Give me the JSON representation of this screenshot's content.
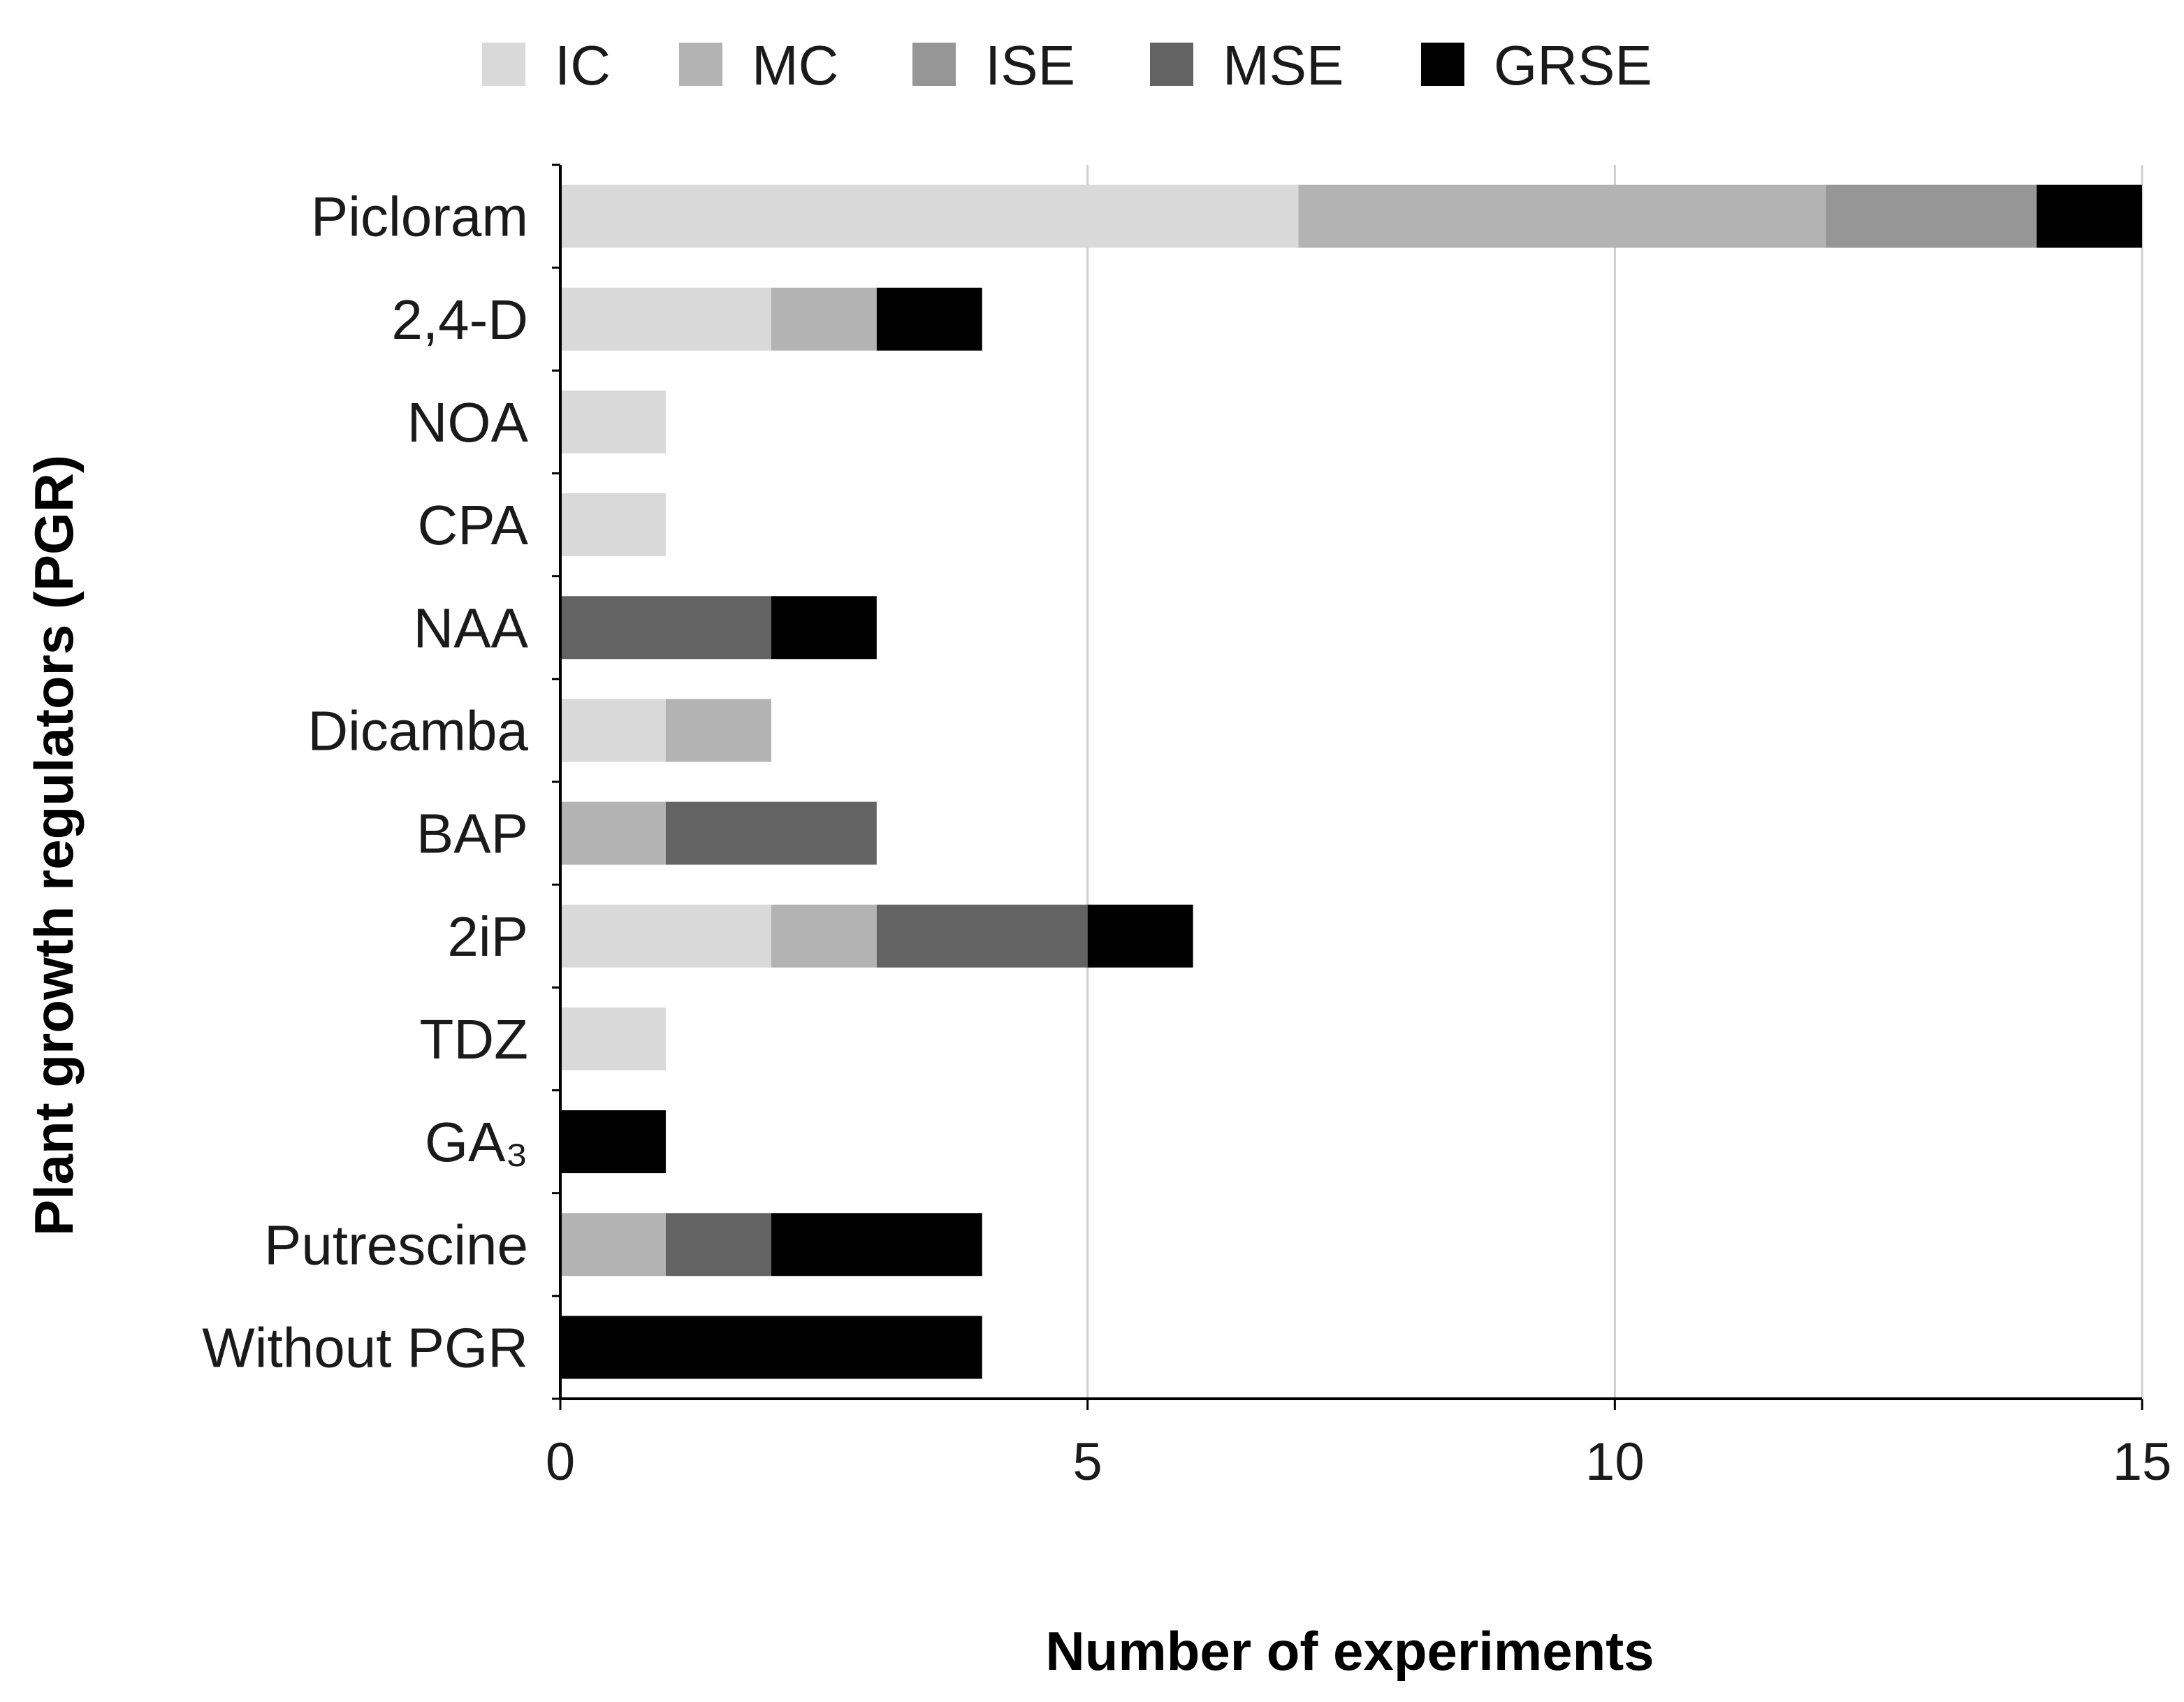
{
  "chart_data": {
    "type": "bar",
    "orientation": "horizontal",
    "stacked": true,
    "title": "",
    "xlabel": "Number of experiments",
    "ylabel": "Plant growth regulators (PGR)",
    "xlim": [
      0,
      15
    ],
    "xticks": [
      0,
      5,
      10,
      15
    ],
    "grid": "vertical",
    "legend_position": "top",
    "categories": [
      "Picloram",
      "2,4-D",
      "NOA",
      "CPA",
      "NAA",
      "Dicamba",
      "BAP",
      "2iP",
      "TDZ",
      "GA₃",
      "Putrescine",
      "Without PGR"
    ],
    "series": [
      {
        "name": "IC",
        "color": "#d9d9d9",
        "values": [
          7,
          2,
          1,
          1,
          0,
          1,
          0,
          2,
          1,
          0,
          0,
          0
        ]
      },
      {
        "name": "MC",
        "color": "#b3b3b3",
        "values": [
          5,
          1,
          0,
          0,
          0,
          1,
          1,
          1,
          0,
          0,
          1,
          0
        ]
      },
      {
        "name": "ISE",
        "color": "#969696",
        "values": [
          2,
          0,
          0,
          0,
          0,
          0,
          0,
          0,
          0,
          0,
          0,
          0
        ]
      },
      {
        "name": "MSE",
        "color": "#636363",
        "values": [
          0,
          0,
          0,
          0,
          2,
          0,
          2,
          2,
          0,
          0,
          1,
          0
        ]
      },
      {
        "name": "GRSE",
        "color": "#000000",
        "values": [
          1,
          1,
          0,
          0,
          1,
          0,
          0,
          1,
          0,
          1,
          2,
          4
        ]
      }
    ]
  }
}
